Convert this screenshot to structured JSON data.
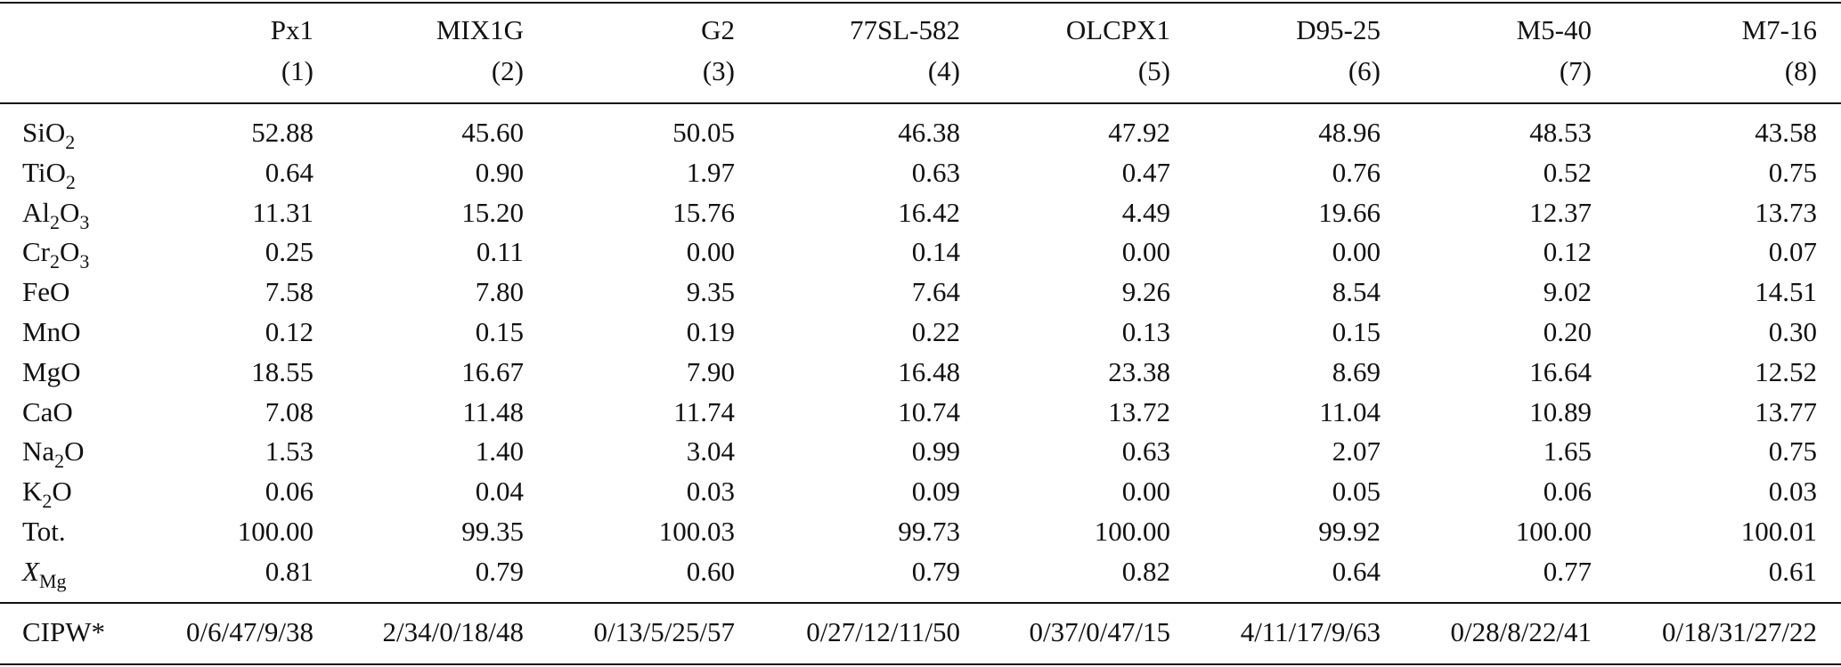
{
  "table": {
    "columns": [
      {
        "name": "Px1",
        "number": "(1)"
      },
      {
        "name": "MIX1G",
        "number": "(2)"
      },
      {
        "name": "G2",
        "number": "(3)"
      },
      {
        "name": "77SL-582",
        "number": "(4)"
      },
      {
        "name": "OLCPX1",
        "number": "(5)"
      },
      {
        "name": "D95-25",
        "number": "(6)"
      },
      {
        "name": "M5-40",
        "number": "(7)"
      },
      {
        "name": "M7-16",
        "number": "(8)"
      }
    ],
    "rows": [
      {
        "label": [
          "SiO",
          "2"
        ],
        "values": [
          "52.88",
          "45.60",
          "50.05",
          "46.38",
          "47.92",
          "48.96",
          "48.53",
          "43.58"
        ]
      },
      {
        "label": [
          "TiO",
          "2"
        ],
        "values": [
          "0.64",
          "0.90",
          "1.97",
          "0.63",
          "0.47",
          "0.76",
          "0.52",
          "0.75"
        ]
      },
      {
        "label": [
          "Al",
          "2",
          "O",
          "3"
        ],
        "values": [
          "11.31",
          "15.20",
          "15.76",
          "16.42",
          "4.49",
          "19.66",
          "12.37",
          "13.73"
        ]
      },
      {
        "label": [
          "Cr",
          "2",
          "O",
          "3"
        ],
        "values": [
          "0.25",
          "0.11",
          "0.00",
          "0.14",
          "0.00",
          "0.00",
          "0.12",
          "0.07"
        ]
      },
      {
        "label": [
          "FeO"
        ],
        "values": [
          "7.58",
          "7.80",
          "9.35",
          "7.64",
          "9.26",
          "8.54",
          "9.02",
          "14.51"
        ]
      },
      {
        "label": [
          "MnO"
        ],
        "values": [
          "0.12",
          "0.15",
          "0.19",
          "0.22",
          "0.13",
          "0.15",
          "0.20",
          "0.30"
        ]
      },
      {
        "label": [
          "MgO"
        ],
        "values": [
          "18.55",
          "16.67",
          "7.90",
          "16.48",
          "23.38",
          "8.69",
          "16.64",
          "12.52"
        ]
      },
      {
        "label": [
          "CaO"
        ],
        "values": [
          "7.08",
          "11.48",
          "11.74",
          "10.74",
          "13.72",
          "11.04",
          "10.89",
          "13.77"
        ]
      },
      {
        "label": [
          "Na",
          "2",
          "O"
        ],
        "values": [
          "1.53",
          "1.40",
          "3.04",
          "0.99",
          "0.63",
          "2.07",
          "1.65",
          "0.75"
        ]
      },
      {
        "label": [
          "K",
          "2",
          "O"
        ],
        "values": [
          "0.06",
          "0.04",
          "0.03",
          "0.09",
          "0.00",
          "0.05",
          "0.06",
          "0.03"
        ]
      },
      {
        "label": [
          "Tot."
        ],
        "values": [
          "100.00",
          "99.35",
          "100.03",
          "99.73",
          "100.00",
          "99.92",
          "100.00",
          "100.01"
        ]
      },
      {
        "label": [
          "X",
          "Mg"
        ],
        "values": [
          "0.81",
          "0.79",
          "0.60",
          "0.79",
          "0.82",
          "0.64",
          "0.77",
          "0.61"
        ]
      }
    ],
    "footer": {
      "label": "CIPW*",
      "values": [
        "0/6/47/9/38",
        "2/34/0/18/48",
        "0/13/5/25/57",
        "0/27/12/11/50",
        "0/37/0/47/15",
        "4/11/17/9/63",
        "0/28/8/22/41",
        "0/18/31/27/22"
      ]
    }
  }
}
